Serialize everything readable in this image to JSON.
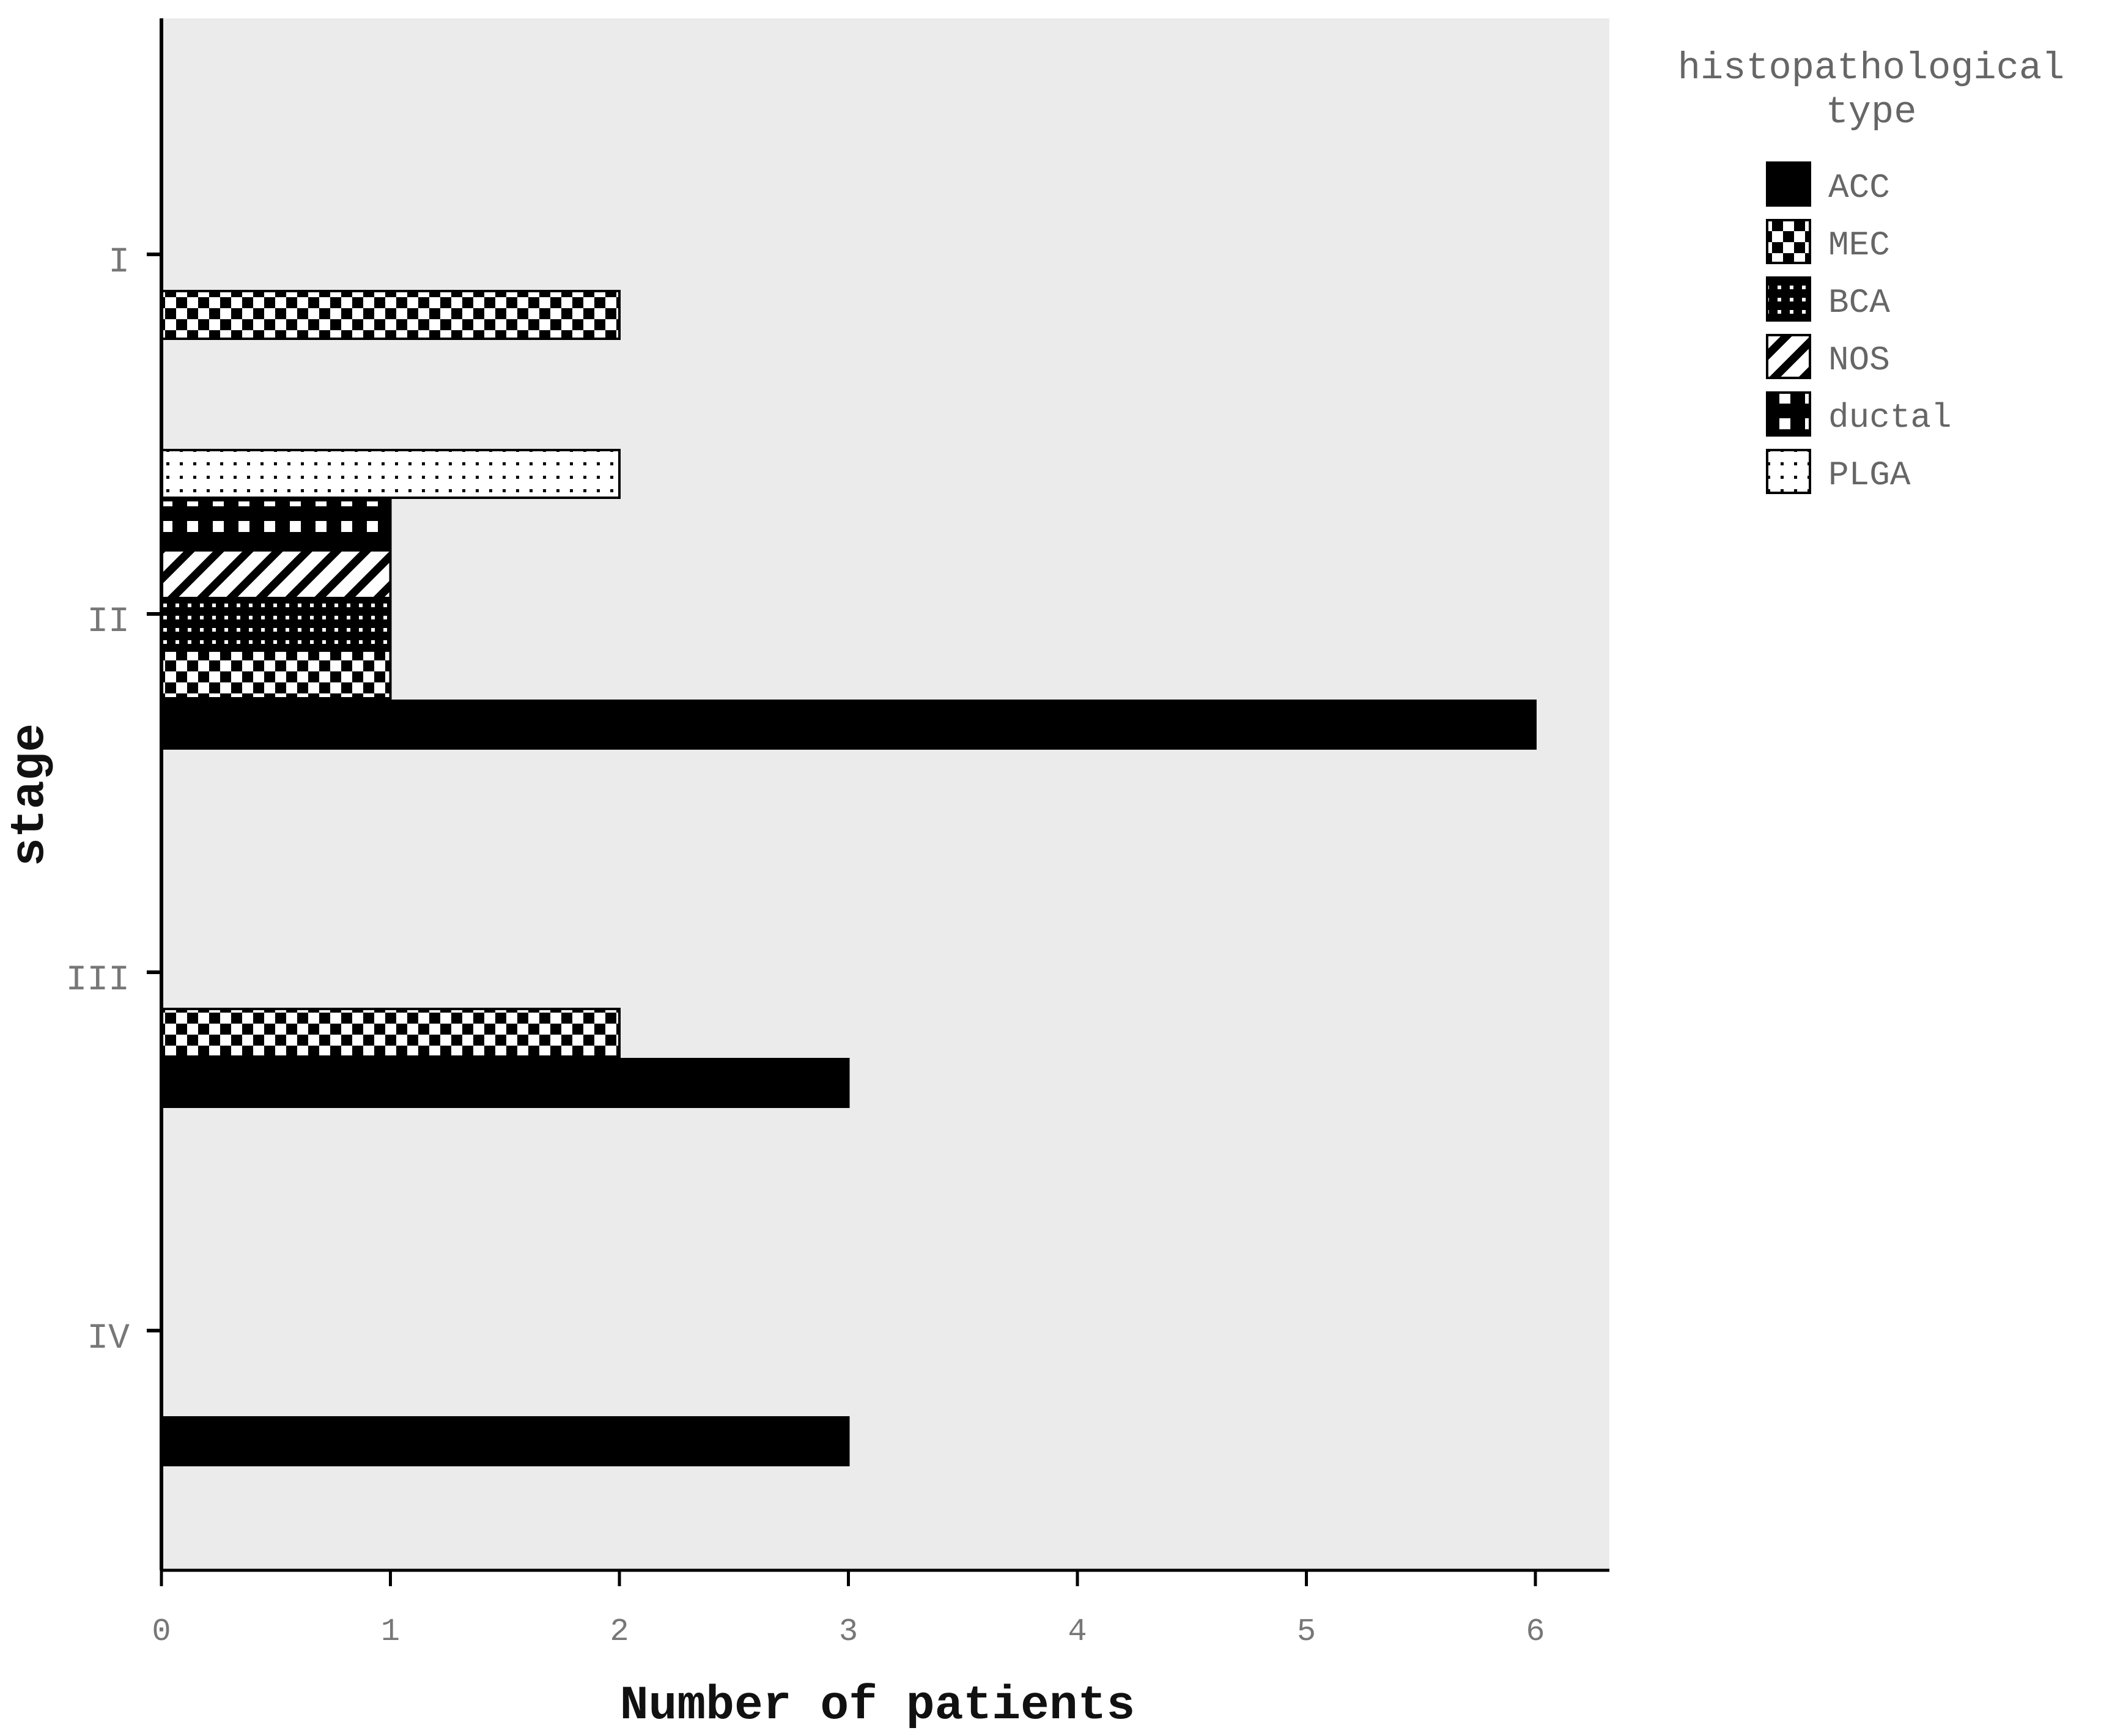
{
  "chart_data": {
    "type": "bar",
    "orientation": "horizontal",
    "categories": [
      "I",
      "II",
      "III",
      "IV"
    ],
    "series": [
      {
        "name": "ACC",
        "pattern": "solid",
        "values": [
          0,
          6,
          3,
          3
        ]
      },
      {
        "name": "MEC",
        "pattern": "checker",
        "values": [
          2,
          1,
          2,
          0
        ]
      },
      {
        "name": "BCA",
        "pattern": "dots",
        "values": [
          0,
          1,
          0,
          0
        ]
      },
      {
        "name": "NOS",
        "pattern": "diagonal",
        "values": [
          0,
          1,
          0,
          0
        ]
      },
      {
        "name": "ductal",
        "pattern": "squares",
        "values": [
          0,
          1,
          0,
          0
        ]
      },
      {
        "name": "PLGA",
        "pattern": "fine-dots",
        "values": [
          0,
          2,
          0,
          0
        ]
      }
    ],
    "xlabel": "Number of patients",
    "ylabel": "stage",
    "xlim": [
      0,
      6.3
    ],
    "xticks": [
      "0",
      "1",
      "2",
      "3",
      "4",
      "5",
      "6"
    ],
    "legend": {
      "title_lines": [
        "histopathological",
        "type"
      ],
      "position": "right"
    },
    "grid": false,
    "colors": {
      "plot_background": "#ebebeb",
      "bar": "#000000",
      "text": "#777777"
    }
  }
}
